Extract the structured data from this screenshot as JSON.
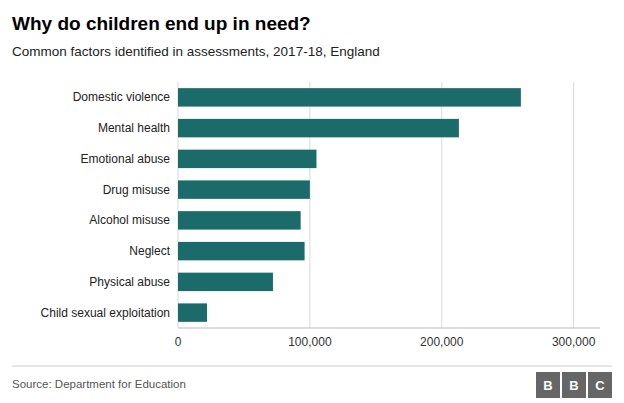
{
  "chart_data": {
    "type": "bar",
    "orientation": "horizontal",
    "title": "Why do children end up in need?",
    "subtitle": "Common factors identified in assessments, 2017-18, England",
    "source": "Source: Department for Education",
    "logo": [
      "B",
      "B",
      "C"
    ],
    "categories": [
      "Child sexual exploitation",
      "Physical abuse",
      "Neglect",
      "Alcohol misuse",
      "Drug misuse",
      "Emotional abuse",
      "Mental health",
      "Domestic violence"
    ],
    "values": [
      22000,
      72000,
      96000,
      93000,
      100000,
      105000,
      213000,
      260000
    ],
    "color": "#1c6b6b",
    "xlim": [
      0,
      320000
    ],
    "xticks": [
      0,
      {
        "value": 100000,
        "label": "100,000"
      },
      {
        "value": 200000,
        "label": "200,000"
      },
      {
        "value": 300000,
        "label": "300,000"
      }
    ],
    "grid": true
  }
}
